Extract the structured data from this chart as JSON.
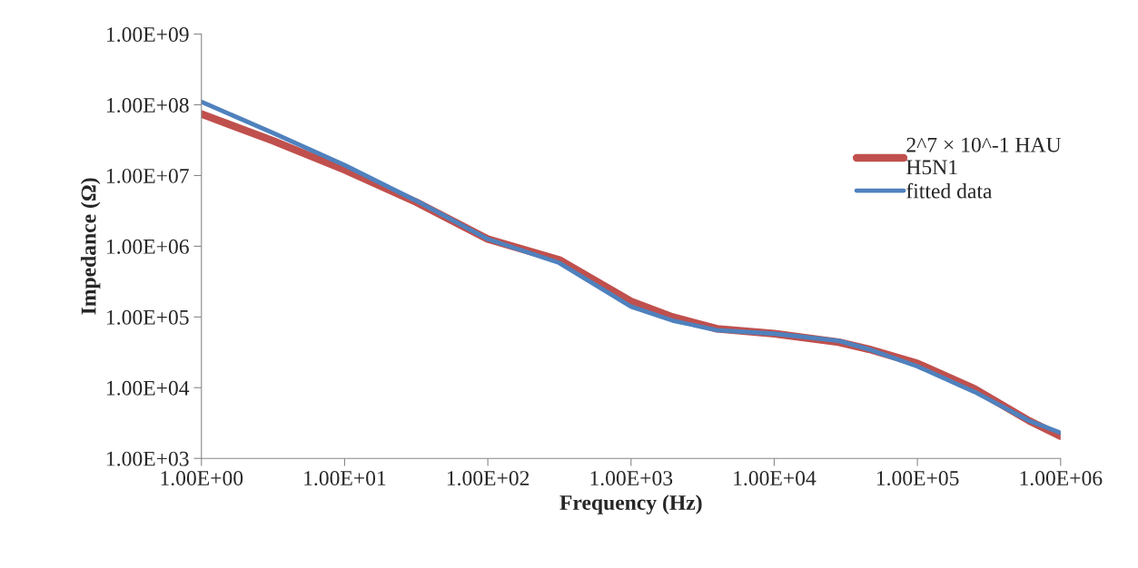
{
  "chart_data": {
    "type": "line",
    "xlabel": "Frequency (Hz)",
    "ylabel": "Impedance (Ω)",
    "log": "xy",
    "grid": false,
    "legend": "right",
    "marker": "none",
    "line_style": "solid",
    "x": [
      1,
      3.16,
      10,
      31.6,
      100,
      316,
      1000,
      1950,
      3980,
      10000,
      28200,
      45700,
      100000,
      251000,
      603000,
      1000000
    ],
    "series": [
      {
        "name": "2^7 × 10^-1 HAU\nH5N1",
        "color": "#c0504d",
        "values": [
          74000000,
          31000000,
          12000000,
          4200000,
          1260000,
          640000,
          166000,
          100000,
          68000,
          58000,
          44000,
          35000,
          22000,
          9600,
          3400,
          2050
        ]
      },
      {
        "name": "fitted data",
        "color": "#4f81bd",
        "values": [
          110000000,
          40000000,
          14000000,
          4400000,
          1260000,
          580000,
          140000,
          89000,
          65000,
          58000,
          46000,
          35000,
          20000,
          8700,
          3400,
          2300
        ]
      }
    ],
    "xlim": [
      1,
      1000000
    ],
    "xticks": [
      {
        "value": 1,
        "label": "1.00E+00"
      },
      {
        "value": 10,
        "label": "1.00E+01"
      },
      {
        "value": 100,
        "label": "1.00E+02"
      },
      {
        "value": 1000,
        "label": "1.00E+03"
      },
      {
        "value": 10000,
        "label": "1.00E+04"
      },
      {
        "value": 100000,
        "label": "1.00E+05"
      },
      {
        "value": 1000000,
        "label": "1.00E+06"
      }
    ],
    "ylim": [
      1000,
      1000000000
    ],
    "yticks": [
      {
        "value": 1000,
        "label": "1.00E+03"
      },
      {
        "value": 10000,
        "label": "1.00E+04"
      },
      {
        "value": 100000,
        "label": "1.00E+05"
      },
      {
        "value": 1000000,
        "label": "1.00E+06"
      },
      {
        "value": 10000000,
        "label": "1.00E+07"
      },
      {
        "value": 100000000,
        "label": "1.00E+08"
      },
      {
        "value": 1000000000,
        "label": "1.00E+09"
      }
    ]
  }
}
